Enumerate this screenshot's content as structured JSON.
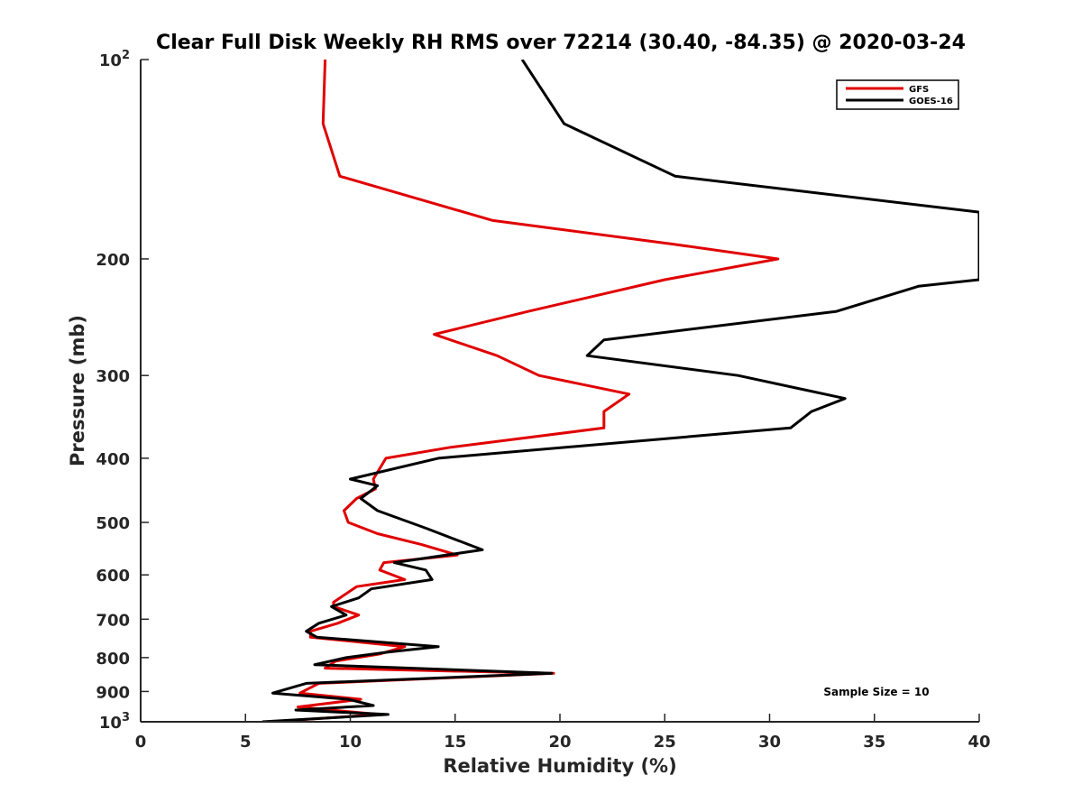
{
  "chart_data": {
    "type": "line",
    "title": "Clear Full Disk Weekly RH RMS over 72214 (30.40, -84.35) @ 2020-03-24",
    "xlabel": "Relative Humidity (%)",
    "ylabel": "Pressure (mb)",
    "xlim": [
      0,
      40
    ],
    "ylim": [
      100,
      1000
    ],
    "yscale": "log",
    "y_reversed": true,
    "x_ticks": [
      "0",
      "5",
      "10",
      "15",
      "20",
      "25",
      "30",
      "35",
      "40"
    ],
    "y_ticks": [
      {
        "value": 100,
        "base": "10",
        "exp": "2"
      },
      {
        "value": 200,
        "label": "200"
      },
      {
        "value": 300,
        "label": "300"
      },
      {
        "value": 400,
        "label": "400"
      },
      {
        "value": 500,
        "label": "500"
      },
      {
        "value": 600,
        "label": "600"
      },
      {
        "value": 700,
        "label": "700"
      },
      {
        "value": 800,
        "label": "800"
      },
      {
        "value": 900,
        "label": "900"
      },
      {
        "value": 1000,
        "base": "10",
        "exp": "3"
      }
    ],
    "legend_position": "top-right",
    "annotation": "Sample Size = 10",
    "series": [
      {
        "name": "GFS",
        "color": "#e00000",
        "points": [
          [
            8.8,
            100
          ],
          [
            8.7,
            125
          ],
          [
            9.5,
            150
          ],
          [
            16.8,
            175
          ],
          [
            25.4,
            190
          ],
          [
            30.4,
            200
          ],
          [
            25.0,
            215
          ],
          [
            18.5,
            240
          ],
          [
            14.0,
            260
          ],
          [
            17.0,
            280
          ],
          [
            19.0,
            300
          ],
          [
            23.3,
            320
          ],
          [
            22.1,
            340
          ],
          [
            22.1,
            360
          ],
          [
            14.8,
            385
          ],
          [
            11.7,
            400
          ],
          [
            11.1,
            430
          ],
          [
            11.2,
            445
          ],
          [
            10.3,
            460
          ],
          [
            9.7,
            480
          ],
          [
            9.9,
            500
          ],
          [
            11.3,
            520
          ],
          [
            13.4,
            540
          ],
          [
            15.1,
            560
          ],
          [
            11.6,
            575
          ],
          [
            11.4,
            590
          ],
          [
            12.6,
            610
          ],
          [
            10.3,
            625
          ],
          [
            9.2,
            660
          ],
          [
            9.2,
            670
          ],
          [
            10.4,
            690
          ],
          [
            9.4,
            710
          ],
          [
            8.1,
            730
          ],
          [
            8.1,
            745
          ],
          [
            12.6,
            770
          ],
          [
            11.4,
            790
          ],
          [
            9.3,
            810
          ],
          [
            8.8,
            830
          ],
          [
            19.7,
            845
          ],
          [
            8.5,
            875
          ],
          [
            7.6,
            905
          ],
          [
            10.5,
            925
          ],
          [
            7.5,
            950
          ],
          [
            11.4,
            975
          ],
          [
            6.2,
            1000
          ]
        ]
      },
      {
        "name": "GOES-16",
        "color": "#000000",
        "points": [
          [
            18.2,
            100
          ],
          [
            20.2,
            125
          ],
          [
            25.5,
            150
          ],
          [
            40.0,
            170
          ],
          [
            40.0,
            215
          ],
          [
            37.1,
            220
          ],
          [
            33.2,
            240
          ],
          [
            22.1,
            265
          ],
          [
            21.3,
            280
          ],
          [
            28.5,
            300
          ],
          [
            33.6,
            325
          ],
          [
            32.0,
            340
          ],
          [
            31.0,
            360
          ],
          [
            14.2,
            400
          ],
          [
            10.0,
            430
          ],
          [
            11.3,
            440
          ],
          [
            10.5,
            460
          ],
          [
            11.3,
            480
          ],
          [
            13.6,
            510
          ],
          [
            16.3,
            550
          ],
          [
            12.1,
            575
          ],
          [
            13.6,
            590
          ],
          [
            13.9,
            610
          ],
          [
            11.0,
            630
          ],
          [
            10.4,
            650
          ],
          [
            9.1,
            670
          ],
          [
            9.8,
            690
          ],
          [
            8.5,
            710
          ],
          [
            7.9,
            730
          ],
          [
            8.4,
            745
          ],
          [
            14.2,
            770
          ],
          [
            11.8,
            785
          ],
          [
            9.8,
            800
          ],
          [
            8.3,
            820
          ],
          [
            19.6,
            845
          ],
          [
            7.9,
            875
          ],
          [
            6.3,
            905
          ],
          [
            9.9,
            925
          ],
          [
            11.1,
            945
          ],
          [
            7.4,
            960
          ],
          [
            11.8,
            975
          ],
          [
            5.8,
            1000
          ]
        ]
      }
    ]
  }
}
